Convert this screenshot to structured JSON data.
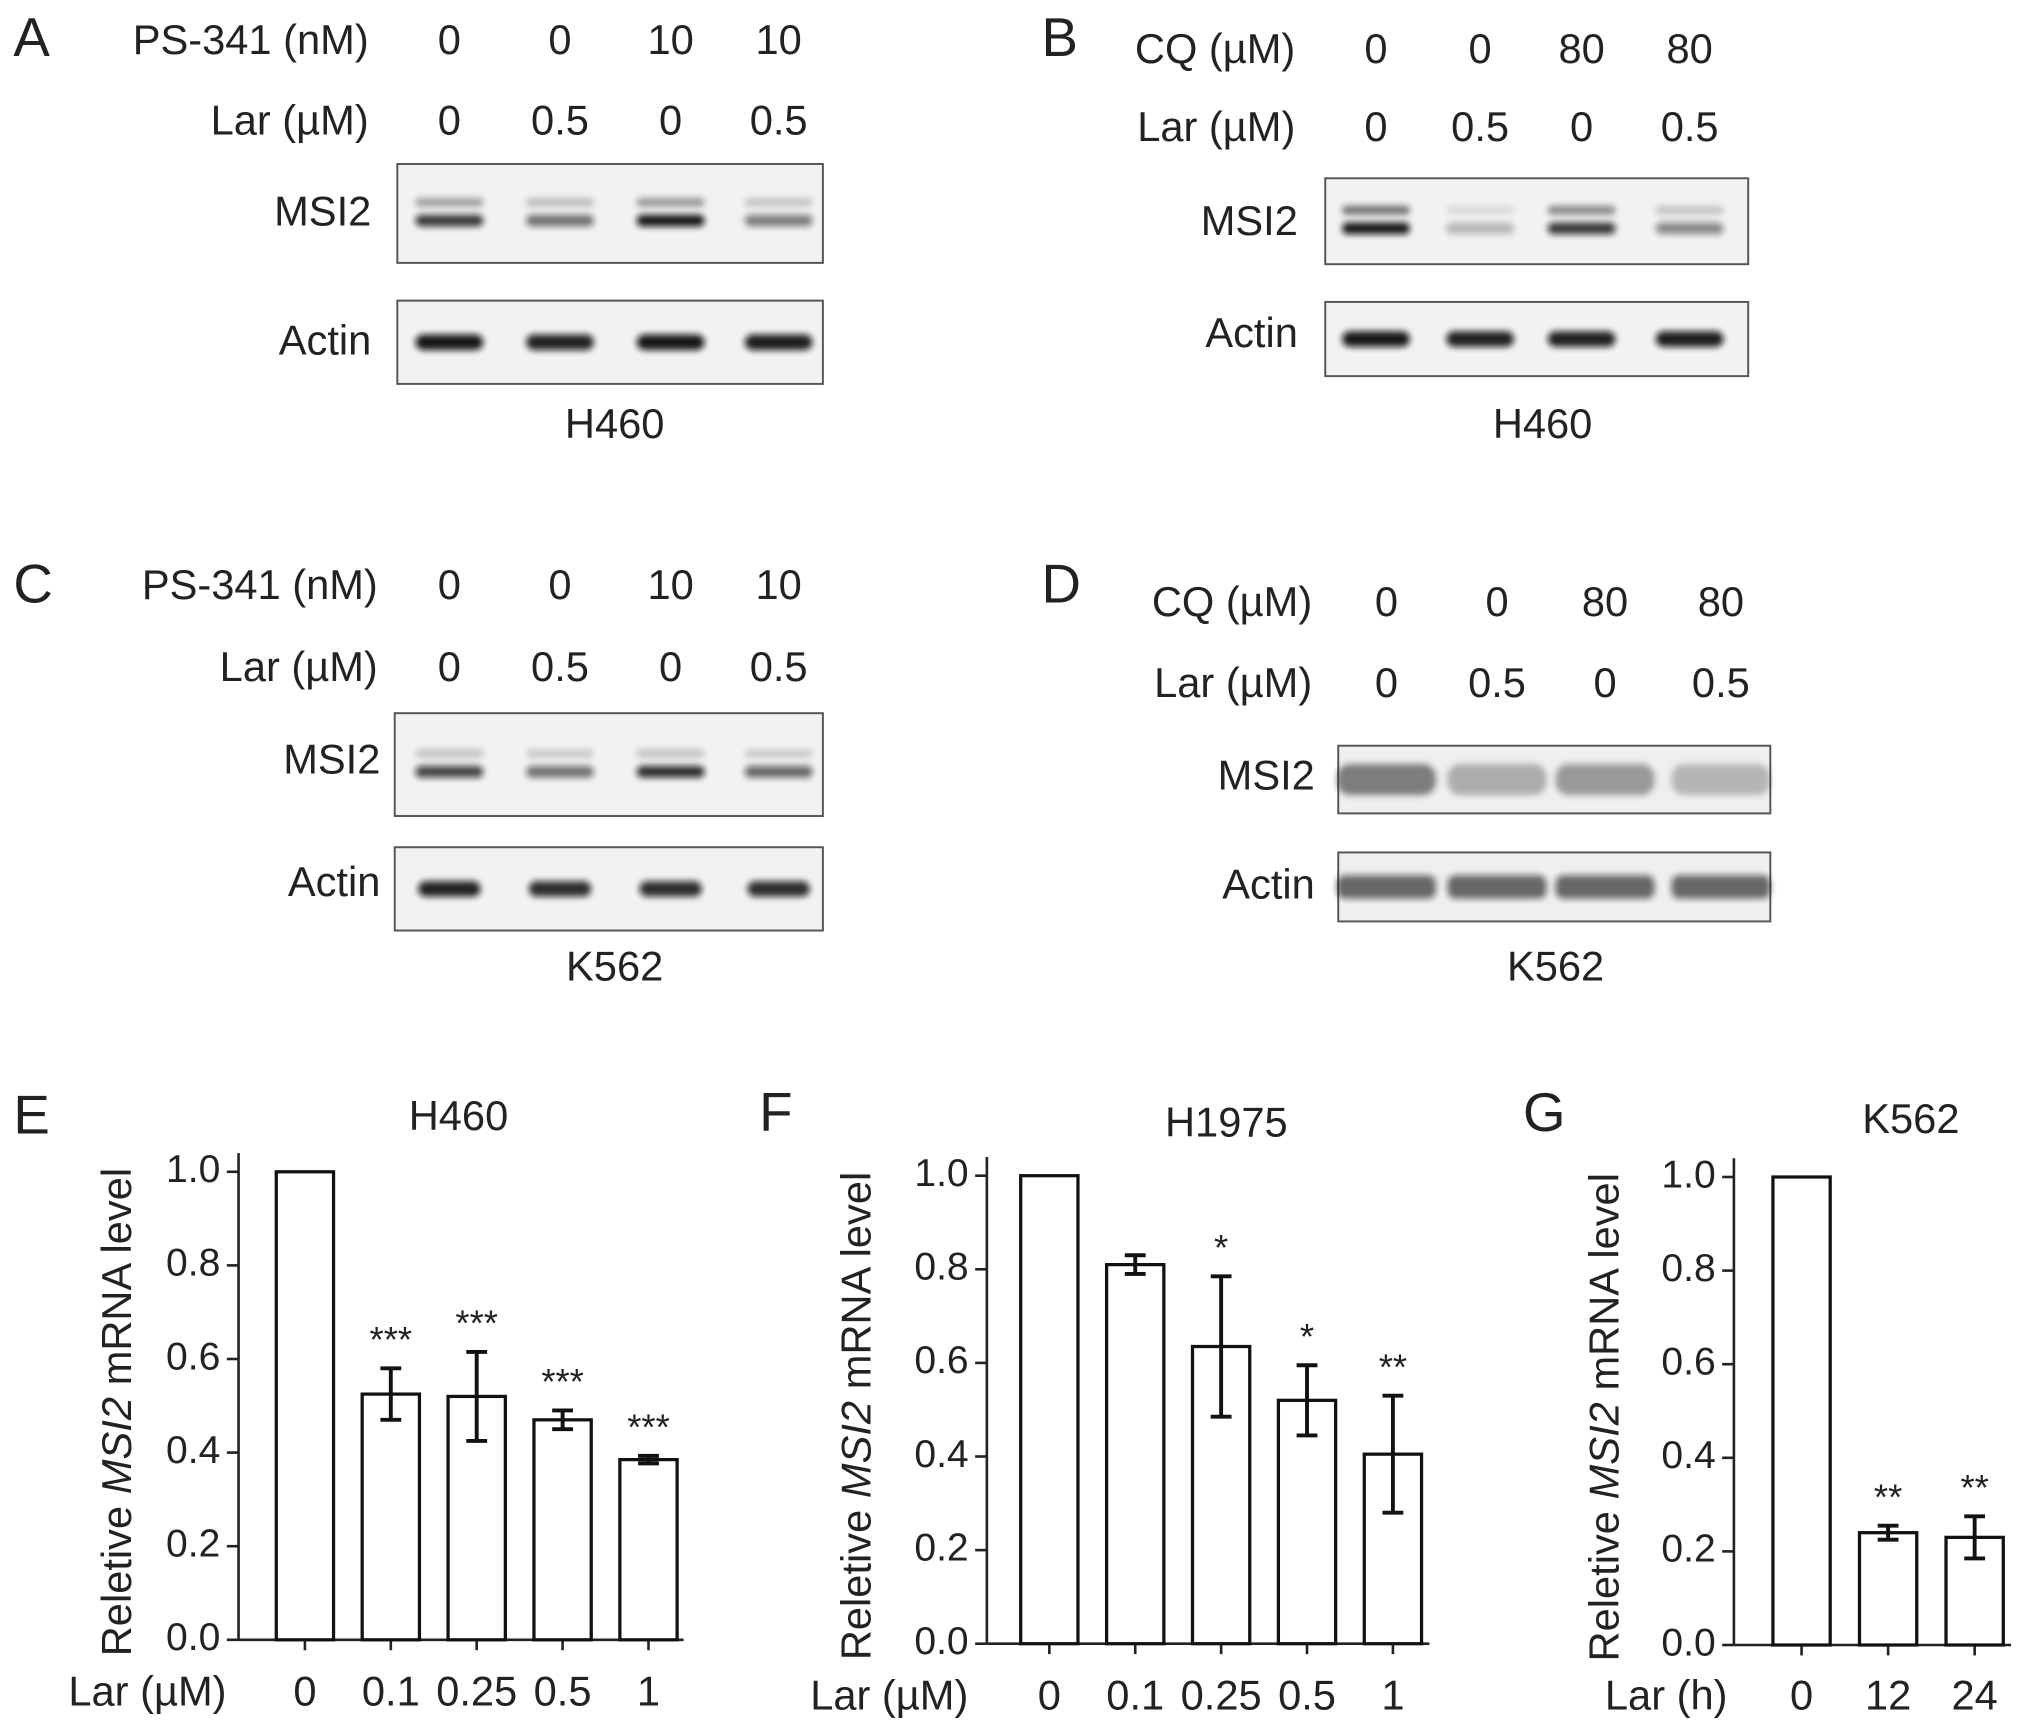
{
  "blots": [
    {
      "letter": "A",
      "conditions": [
        {
          "label": "PS-341 (nM)",
          "values": [
            0,
            0,
            10,
            10
          ]
        },
        {
          "label": "Lar (µM)",
          "values": [
            0,
            0.5,
            0,
            0.5
          ]
        }
      ],
      "bands": [
        "MSI2",
        "Actin"
      ],
      "cell_line": "H460"
    },
    {
      "letter": "B",
      "conditions": [
        {
          "label": "CQ (µM)",
          "values": [
            0,
            0,
            80,
            80
          ]
        },
        {
          "label": "Lar (µM)",
          "values": [
            0,
            0.5,
            0,
            0.5
          ]
        }
      ],
      "bands": [
        "MSI2",
        "Actin"
      ],
      "cell_line": "H460"
    },
    {
      "letter": "C",
      "conditions": [
        {
          "label": "PS-341 (nM)",
          "values": [
            0,
            0,
            10,
            10
          ]
        },
        {
          "label": "Lar (µM)",
          "values": [
            0,
            0.5,
            0,
            0.5
          ]
        }
      ],
      "bands": [
        "MSI2",
        "Actin"
      ],
      "cell_line": "K562"
    },
    {
      "letter": "D",
      "conditions": [
        {
          "label": "CQ (µM)",
          "values": [
            0,
            0,
            80,
            80
          ]
        },
        {
          "label": "Lar (µM)",
          "values": [
            0,
            0.5,
            0,
            0.5
          ]
        }
      ],
      "bands": [
        "MSI2",
        "Actin"
      ],
      "cell_line": "K562"
    }
  ],
  "chart_data": [
    {
      "type": "bar",
      "letter": "E",
      "title": "H460",
      "ylabel": {
        "prefix": "Reletive",
        "gene": "MSI2",
        "suffix": "mRNA level"
      },
      "xlabel": "Lar (µM)",
      "categories": [
        "0",
        "0.1",
        "0.25",
        "0.5",
        "1"
      ],
      "values": [
        1.0,
        0.525,
        0.52,
        0.47,
        0.385
      ],
      "errors": [
        null,
        0.055,
        0.095,
        0.02,
        0.008
      ],
      "annotations": [
        null,
        "***",
        "***",
        "***",
        "***"
      ],
      "color": "#ffffff",
      "ylim": [
        0,
        1.04
      ],
      "yticks": [
        {
          "value": 0,
          "label": "0.0"
        },
        {
          "value": 0.2,
          "label": "0.2"
        },
        {
          "value": 0.4,
          "label": "0.4"
        },
        {
          "value": 0.6,
          "label": "0.6"
        },
        {
          "value": 0.8,
          "label": "0.8"
        },
        {
          "value": 1,
          "label": "1.0"
        }
      ]
    },
    {
      "type": "bar",
      "letter": "F",
      "title": "H1975",
      "ylabel": {
        "prefix": "Reletive",
        "gene": "MSI2",
        "suffix": "mRNA level"
      },
      "xlabel": "Lar (µM)",
      "categories": [
        "0",
        "0.1",
        "0.25",
        "0.5",
        "1"
      ],
      "values": [
        1.0,
        0.81,
        0.635,
        0.52,
        0.405
      ],
      "errors": [
        null,
        0.02,
        0.15,
        0.075,
        0.125
      ],
      "annotations": [
        null,
        null,
        "*",
        "*",
        "**"
      ],
      "color": "#ffffff",
      "ylim": [
        0,
        1.04
      ],
      "yticks": [
        {
          "value": 0,
          "label": "0.0"
        },
        {
          "value": 0.2,
          "label": "0.2"
        },
        {
          "value": 0.4,
          "label": "0.4"
        },
        {
          "value": 0.6,
          "label": "0.6"
        },
        {
          "value": 0.8,
          "label": "0.8"
        },
        {
          "value": 1,
          "label": "1.0"
        }
      ]
    },
    {
      "type": "bar",
      "letter": "G",
      "title": "K562",
      "ylabel": {
        "prefix": "Reletive",
        "gene": "MSI2",
        "suffix": "mRNA level"
      },
      "xlabel": "Lar (h)",
      "categories": [
        "0",
        "12",
        "24"
      ],
      "values": [
        1.0,
        0.24,
        0.23
      ],
      "errors": [
        null,
        0.015,
        0.045
      ],
      "annotations": [
        null,
        "**",
        "**"
      ],
      "color": "#ffffff",
      "ylim": [
        0,
        1.04
      ],
      "yticks": [
        {
          "value": 0,
          "label": "0.0"
        },
        {
          "value": 0.2,
          "label": "0.2"
        },
        {
          "value": 0.4,
          "label": "0.4"
        },
        {
          "value": 0.6,
          "label": "0.6"
        },
        {
          "value": 0.8,
          "label": "0.8"
        },
        {
          "value": 1,
          "label": "1.0"
        }
      ]
    }
  ]
}
